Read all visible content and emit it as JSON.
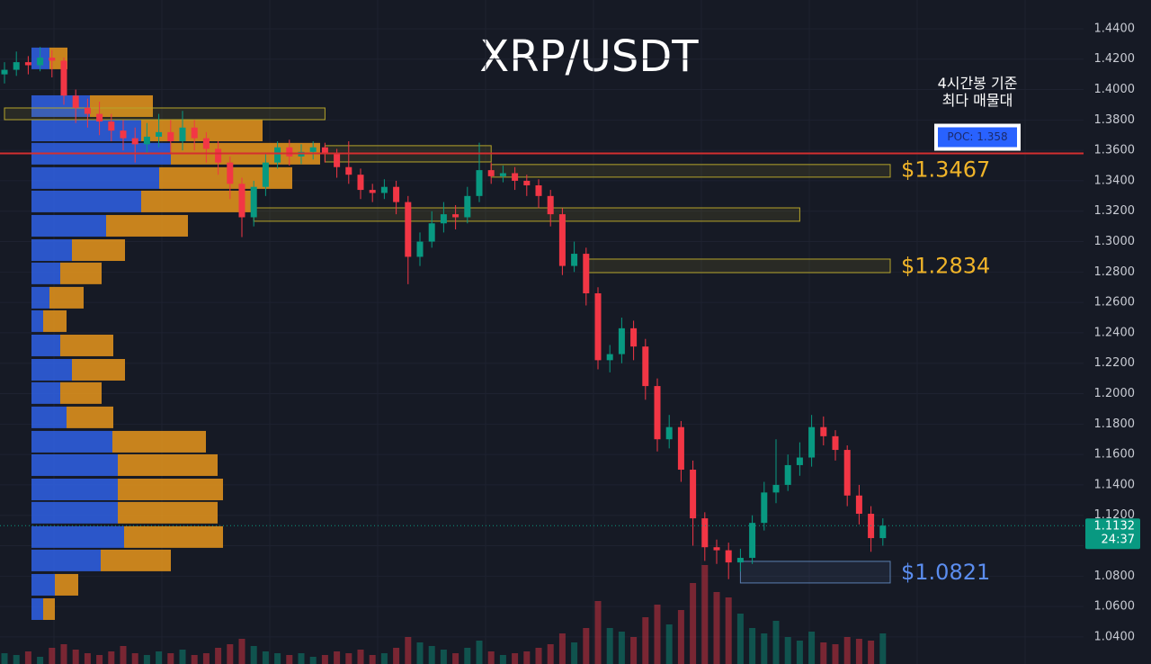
{
  "chart_data": {
    "type": "candlestick",
    "title": "XRP/USDT",
    "ylim": [
      1.0222,
      1.4589
    ],
    "yticks": [
      {
        "value": 1.04,
        "label": "1.0400"
      },
      {
        "value": 1.06,
        "label": "1.0600"
      },
      {
        "value": 1.08,
        "label": "1.0800"
      },
      {
        "value": 1.1,
        "label": "1.1000"
      },
      {
        "value": 1.12,
        "label": "1.1200"
      },
      {
        "value": 1.14,
        "label": "1.1400"
      },
      {
        "value": 1.16,
        "label": "1.1600"
      },
      {
        "value": 1.18,
        "label": "1.1800"
      },
      {
        "value": 1.2,
        "label": "1.2000"
      },
      {
        "value": 1.22,
        "label": "1.2200"
      },
      {
        "value": 1.24,
        "label": "1.2400"
      },
      {
        "value": 1.26,
        "label": "1.2600"
      },
      {
        "value": 1.28,
        "label": "1.2800"
      },
      {
        "value": 1.3,
        "label": "1.3000"
      },
      {
        "value": 1.32,
        "label": "1.3200"
      },
      {
        "value": 1.34,
        "label": "1.3400"
      },
      {
        "value": 1.36,
        "label": "1.3600"
      },
      {
        "value": 1.38,
        "label": "1.3800"
      },
      {
        "value": 1.4,
        "label": "1.4000"
      },
      {
        "value": 1.42,
        "label": "1.4200"
      },
      {
        "value": 1.44,
        "label": "1.4400"
      }
    ],
    "grid": true,
    "up_color": "#089981",
    "down_color": "#f23645",
    "open": [
      1.41,
      1.413,
      1.418,
      1.416,
      1.421,
      1.419,
      1.396,
      1.388,
      1.384,
      1.379,
      1.373,
      1.368,
      1.364,
      1.369,
      1.372,
      1.366,
      1.375,
      1.368,
      1.361,
      1.352,
      1.338,
      1.316,
      1.336,
      1.352,
      1.362,
      1.356,
      1.359,
      1.362,
      1.358,
      1.349,
      1.344,
      1.334,
      1.332,
      1.336,
      1.326,
      1.29,
      1.3,
      1.312,
      1.318,
      1.316,
      1.33,
      1.347,
      1.343,
      1.345,
      1.34,
      1.337,
      1.33,
      1.318,
      1.284,
      1.292,
      1.266,
      1.222,
      1.226,
      1.243,
      1.231,
      1.205,
      1.17,
      1.178,
      1.15,
      1.118,
      1.099,
      1.097,
      1.089,
      1.092,
      1.115,
      1.135,
      1.14,
      1.153,
      1.158,
      1.178,
      1.172,
      1.163,
      1.133,
      1.121,
      1.105
    ],
    "high": [
      1.418,
      1.425,
      1.422,
      1.428,
      1.426,
      1.421,
      1.4,
      1.394,
      1.392,
      1.384,
      1.38,
      1.375,
      1.378,
      1.384,
      1.38,
      1.386,
      1.38,
      1.372,
      1.366,
      1.356,
      1.342,
      1.34,
      1.358,
      1.366,
      1.367,
      1.364,
      1.366,
      1.365,
      1.361,
      1.366,
      1.348,
      1.338,
      1.341,
      1.34,
      1.33,
      1.306,
      1.32,
      1.326,
      1.324,
      1.336,
      1.365,
      1.352,
      1.35,
      1.349,
      1.344,
      1.341,
      1.334,
      1.322,
      1.3,
      1.296,
      1.27,
      1.232,
      1.25,
      1.248,
      1.236,
      1.21,
      1.186,
      1.182,
      1.156,
      1.122,
      1.104,
      1.102,
      1.098,
      1.12,
      1.142,
      1.17,
      1.16,
      1.168,
      1.186,
      1.185,
      1.176,
      1.166,
      1.14,
      1.126,
      1.118
    ],
    "low": [
      1.404,
      1.409,
      1.41,
      1.412,
      1.408,
      1.39,
      1.378,
      1.375,
      1.37,
      1.366,
      1.36,
      1.352,
      1.358,
      1.362,
      1.358,
      1.36,
      1.36,
      1.352,
      1.344,
      1.328,
      1.303,
      1.31,
      1.33,
      1.348,
      1.35,
      1.351,
      1.354,
      1.352,
      1.342,
      1.338,
      1.328,
      1.326,
      1.328,
      1.318,
      1.272,
      1.284,
      1.296,
      1.306,
      1.308,
      1.312,
      1.326,
      1.338,
      1.339,
      1.334,
      1.33,
      1.322,
      1.31,
      1.278,
      1.28,
      1.258,
      1.216,
      1.214,
      1.22,
      1.222,
      1.196,
      1.162,
      1.164,
      1.142,
      1.1,
      1.09,
      1.088,
      1.078,
      1.083,
      1.088,
      1.11,
      1.128,
      1.136,
      1.146,
      1.152,
      1.166,
      1.156,
      1.126,
      1.114,
      1.096,
      1.1
    ],
    "close": [
      1.413,
      1.418,
      1.416,
      1.421,
      1.419,
      1.396,
      1.388,
      1.384,
      1.379,
      1.373,
      1.368,
      1.364,
      1.369,
      1.372,
      1.366,
      1.375,
      1.368,
      1.361,
      1.352,
      1.338,
      1.316,
      1.336,
      1.352,
      1.362,
      1.356,
      1.359,
      1.362,
      1.358,
      1.349,
      1.344,
      1.334,
      1.332,
      1.336,
      1.326,
      1.29,
      1.3,
      1.312,
      1.318,
      1.316,
      1.33,
      1.347,
      1.343,
      1.345,
      1.34,
      1.337,
      1.33,
      1.318,
      1.284,
      1.292,
      1.266,
      1.222,
      1.226,
      1.243,
      1.231,
      1.205,
      1.17,
      1.178,
      1.15,
      1.118,
      1.099,
      1.097,
      1.089,
      1.092,
      1.115,
      1.135,
      1.14,
      1.153,
      1.158,
      1.178,
      1.172,
      1.163,
      1.133,
      1.121,
      1.105,
      1.1132
    ],
    "volume": [
      12,
      10,
      14,
      8,
      18,
      22,
      16,
      12,
      10,
      14,
      20,
      12,
      10,
      14,
      12,
      16,
      10,
      12,
      18,
      22,
      28,
      20,
      14,
      12,
      10,
      12,
      8,
      10,
      14,
      12,
      16,
      10,
      12,
      18,
      30,
      24,
      20,
      16,
      12,
      18,
      26,
      14,
      10,
      12,
      14,
      18,
      22,
      34,
      24,
      40,
      70,
      40,
      36,
      30,
      52,
      66,
      44,
      60,
      90,
      110,
      80,
      74,
      56,
      40,
      34,
      48,
      30,
      26,
      36,
      24,
      22,
      30,
      28,
      26,
      34
    ],
    "volume_profile": {
      "prices": [
        1.4205,
        1.3891,
        1.3731,
        1.3578,
        1.3418,
        1.3264,
        1.3104,
        1.2944,
        1.2791,
        1.2631,
        1.2477,
        1.2317,
        1.2157,
        1.2004,
        1.1844,
        1.1684,
        1.153,
        1.137,
        1.1217,
        1.1057,
        1.0903,
        1.0743,
        1.0583
      ],
      "up_volume": [
        20,
        65,
        122,
        155,
        142,
        122,
        83,
        45,
        32,
        20,
        13,
        32,
        45,
        32,
        39,
        90,
        96,
        96,
        96,
        103,
        77,
        26,
        13
      ],
      "down_volume": [
        20,
        70,
        135,
        166,
        148,
        128,
        91,
        59,
        46,
        38,
        26,
        59,
        59,
        46,
        52,
        104,
        111,
        117,
        111,
        110,
        78,
        26,
        13
      ],
      "up_color": "#2f62e6",
      "down_color": "#e8961c"
    },
    "zones": [
      {
        "low": 1.3802,
        "high": 1.3879,
        "start": 0,
        "end": 27,
        "color": "#b5a42a"
      },
      {
        "low": 1.3524,
        "high": 1.3631,
        "start": 27,
        "end": 41,
        "color": "#b5a42a"
      },
      {
        "low": 1.3134,
        "high": 1.3222,
        "start": 21,
        "end": 67,
        "color": "#b5a42a"
      },
      {
        "low": 1.3424,
        "high": 1.3507,
        "start": 41,
        "end": 74,
        "color": "#b5a42a",
        "value": 1.3467,
        "label": "$1.3467"
      },
      {
        "low": 1.2796,
        "high": 1.2885,
        "start": 49,
        "end": 74,
        "color": "#b5a42a",
        "value": 1.2834,
        "label": "$1.2834"
      },
      {
        "low": 1.0755,
        "high": 1.0897,
        "start": 62,
        "end": 74,
        "color": "#5a7fb0",
        "value": 1.0821,
        "label": "$1.0821"
      }
    ],
    "label_colors": [
      "#f0b429",
      "#f0b429",
      "#5b8def"
    ],
    "poc": {
      "value": 1.358,
      "label": "POC: 1.358",
      "note": [
        "4시간봉 기준",
        "최다 매물대"
      ],
      "color": "#d32f2f"
    },
    "last_price": {
      "value": 1.1132,
      "label": "1.1132",
      "countdown": "24:37"
    }
  }
}
